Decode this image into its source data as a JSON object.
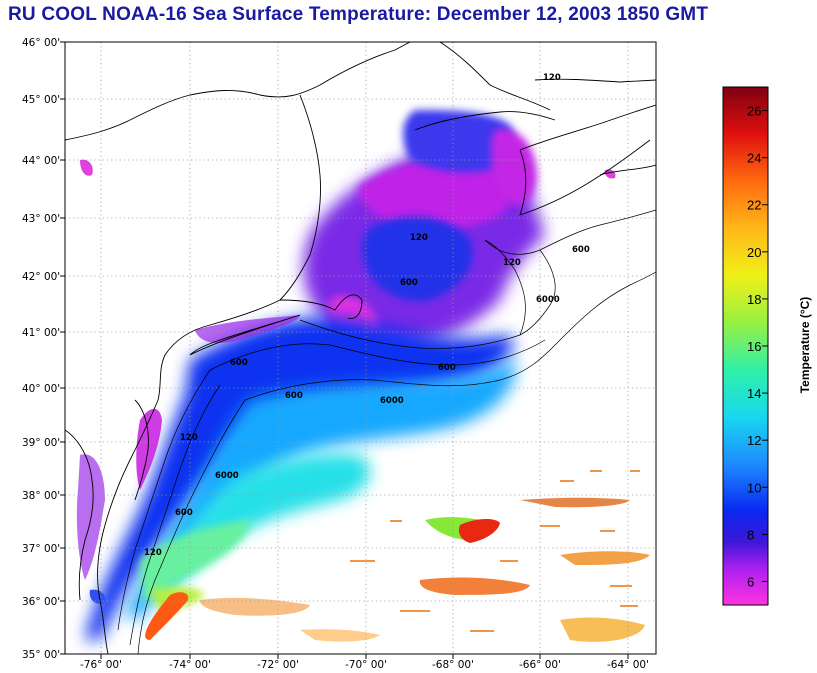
{
  "title": "RU COOL  NOAA-16  Sea Surface Temperature:  December 12, 2003 1850 GMT",
  "map": {
    "lat_labels": [
      "35° 00'",
      "36° 00'",
      "37° 00'",
      "38° 00'",
      "39° 00'",
      "40° 00'",
      "41° 00'",
      "42° 00'",
      "43° 00'",
      "44° 00'",
      "45° 00'",
      "46° 00'"
    ],
    "lon_labels": [
      "-76° 00'",
      "-74° 00'",
      "-72° 00'",
      "-70° 00'",
      "-68° 00'",
      "-66° 00'",
      "-64° 00'"
    ],
    "contour_labels": [
      "120",
      "600",
      "6000",
      "120",
      "600",
      "6000",
      "600",
      "600",
      "6000",
      "120",
      "600",
      "120",
      "600",
      "120"
    ],
    "colors": {
      "land_outline": "#000000",
      "grid": "#9a9a9a",
      "frame": "#000000"
    }
  },
  "colorbar": {
    "title": "Temperature (°C)",
    "ticks": [
      "26",
      "24",
      "22",
      "20",
      "18",
      "16",
      "14",
      "12",
      "10",
      "8",
      "6"
    ],
    "min": 5,
    "max": 27,
    "stops": [
      {
        "value": 5,
        "color": "#ff33e0"
      },
      {
        "value": 6.5,
        "color": "#b020f0"
      },
      {
        "value": 7.7,
        "color": "#3a18d8"
      },
      {
        "value": 9,
        "color": "#0a28f0"
      },
      {
        "value": 11,
        "color": "#1e8cff"
      },
      {
        "value": 13,
        "color": "#18d8ee"
      },
      {
        "value": 15,
        "color": "#30f0a8"
      },
      {
        "value": 17,
        "color": "#98f040"
      },
      {
        "value": 19,
        "color": "#f0f018"
      },
      {
        "value": 21,
        "color": "#ffb818"
      },
      {
        "value": 23,
        "color": "#ff6a10"
      },
      {
        "value": 25,
        "color": "#e01010"
      },
      {
        "value": 27,
        "color": "#800010"
      }
    ]
  }
}
